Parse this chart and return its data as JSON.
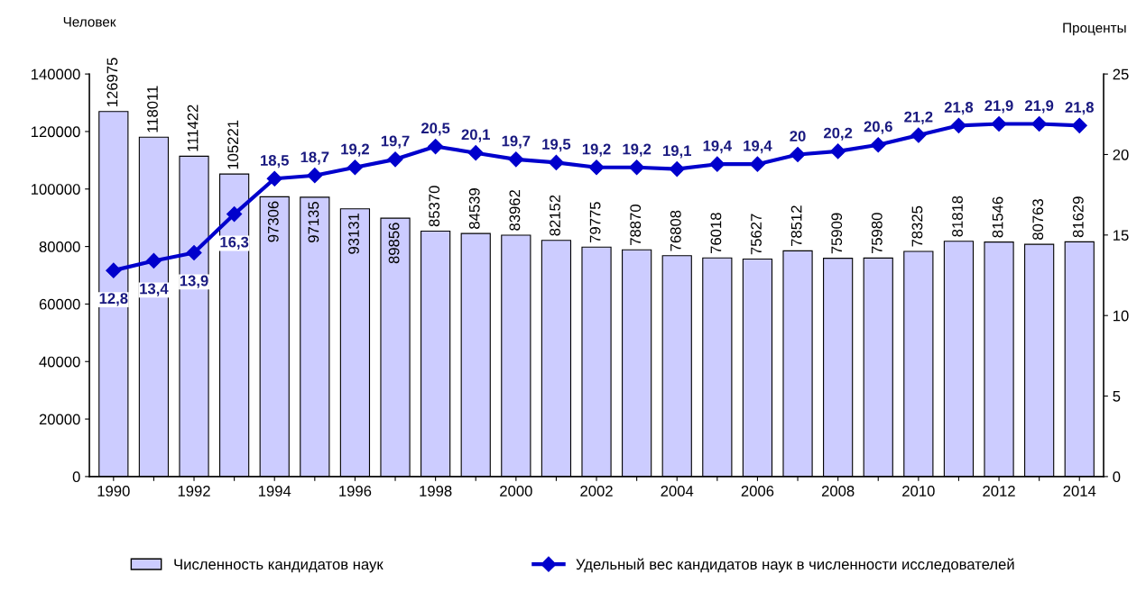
{
  "chart_data": {
    "type": "bar",
    "ylabel": "Человек",
    "y2label": "Проценты",
    "categories": [
      "1990",
      null,
      "1992",
      null,
      "1994",
      null,
      "1996",
      null,
      "1998",
      null,
      "2000",
      null,
      "2002",
      null,
      "2004",
      null,
      "2006",
      null,
      "2008",
      null,
      "2010",
      null,
      "2012",
      null,
      "2014"
    ],
    "series": [
      {
        "name": "Численность кандидатов наук",
        "color": "#ccccff",
        "values": [
          126975,
          118011,
          111422,
          105221,
          97306,
          97135,
          93131,
          89856,
          85370,
          84539,
          83962,
          82152,
          79775,
          78870,
          76808,
          76018,
          75627,
          78512,
          75909,
          75980,
          78325,
          81818,
          81546,
          80763,
          81629
        ],
        "value_labels": [
          "126975",
          "118011",
          "111422",
          "105221",
          "97306",
          "97135",
          "93131",
          "89856",
          "85370",
          "84539",
          "83962",
          "82152",
          "79775",
          "78870",
          "76808",
          "76018",
          "75627",
          "78512",
          "75909",
          "75980",
          "78325",
          "81818",
          "81546",
          "80763",
          "81629"
        ]
      },
      {
        "name": "Удельный вес кандидатов наук в численности исследователей",
        "type": "line",
        "axis": "y2",
        "color": "#0000cc",
        "values": [
          12.8,
          13.4,
          13.9,
          16.3,
          18.5,
          18.7,
          19.2,
          19.7,
          20.5,
          20.1,
          19.7,
          19.5,
          19.2,
          19.2,
          19.1,
          19.4,
          19.4,
          20,
          20.2,
          20.6,
          21.2,
          21.8,
          21.9,
          21.9,
          21.8
        ],
        "value_labels": [
          "12,8",
          "13,4",
          "13,9",
          "16,3",
          "18,5",
          "18,7",
          "19,2",
          "19,7",
          "20,5",
          "20,1",
          "19,7",
          "19,5",
          "19,2",
          "19,2",
          "19,1",
          "19,4",
          "19,4",
          "20",
          "20,2",
          "20,6",
          "21,2",
          "21,8",
          "21,9",
          "21,9",
          "21,8"
        ]
      }
    ],
    "ylim": [
      0,
      140000
    ],
    "yticks": [
      0,
      20000,
      40000,
      60000,
      80000,
      100000,
      120000,
      140000
    ],
    "y2lim": [
      0,
      25
    ],
    "y2ticks": [
      0,
      5,
      10,
      15,
      20,
      25
    ],
    "marker": "diamond",
    "line_style": "solid",
    "grid": false,
    "legend": "bottom"
  }
}
